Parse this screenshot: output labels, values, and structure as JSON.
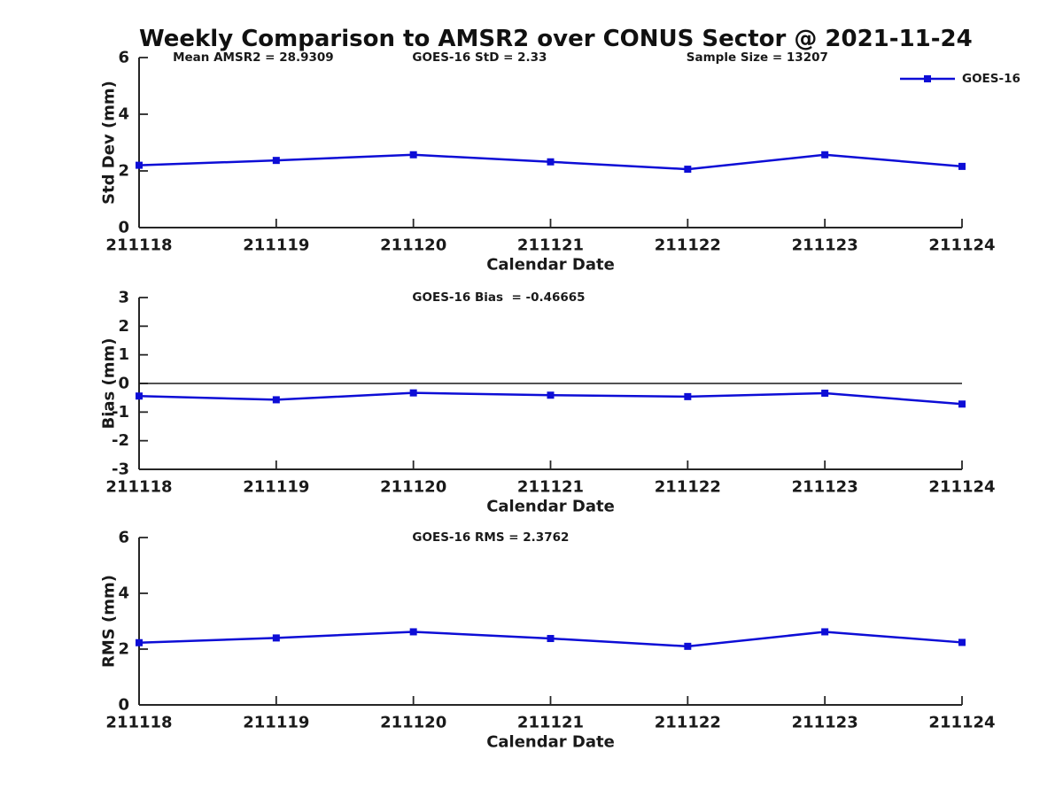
{
  "title": "Weekly Comparison to AMSR2 over CONUS Sector @ 2021-11-24",
  "colors": {
    "series": "#0d0dd6",
    "text": "#1a1a1a",
    "axis": "#262626",
    "zero_line": "#1a1a1a"
  },
  "legend": {
    "label": "GOES-16"
  },
  "chart_data": [
    {
      "type": "line",
      "panel": "std-dev",
      "x": [
        "211118",
        "211119",
        "211120",
        "211121",
        "211122",
        "211123",
        "211124"
      ],
      "series": [
        {
          "name": "GOES-16",
          "values": [
            2.2,
            2.37,
            2.57,
            2.32,
            2.06,
            2.57,
            2.16
          ],
          "marker": "square"
        }
      ],
      "xlabel": "Calendar Date",
      "ylabel": "Std Dev (mm)",
      "ylim": [
        0,
        6
      ],
      "yticks": [
        0,
        2,
        4,
        6
      ],
      "grid": false,
      "zero_line": false,
      "legend": {
        "label": "GOES-16",
        "position": "top-right"
      },
      "annotations": [
        {
          "text": "Mean AMSR2 = 28.9309",
          "xfrac": 0.041
        },
        {
          "text": "GOES-16 StD = 2.33",
          "xfrac": 0.332
        },
        {
          "text": "Sample Size = 13207",
          "xfrac": 0.665
        }
      ]
    },
    {
      "type": "line",
      "panel": "bias",
      "x": [
        "211118",
        "211119",
        "211120",
        "211121",
        "211122",
        "211123",
        "211124"
      ],
      "series": [
        {
          "name": "GOES-16",
          "values": [
            -0.44,
            -0.57,
            -0.33,
            -0.41,
            -0.46,
            -0.34,
            -0.72
          ],
          "marker": "square"
        }
      ],
      "xlabel": "Calendar Date",
      "ylabel": "Bias (mm)",
      "ylim": [
        -3,
        3
      ],
      "yticks": [
        3,
        2,
        1,
        0,
        -1,
        -2,
        -3
      ],
      "grid": false,
      "zero_line": true,
      "annotations": [
        {
          "text": "GOES-16 Bias  = -0.46665",
          "xfrac": 0.332
        }
      ]
    },
    {
      "type": "line",
      "panel": "rms",
      "x": [
        "211118",
        "211119",
        "211120",
        "211121",
        "211122",
        "211123",
        "211124"
      ],
      "series": [
        {
          "name": "GOES-16",
          "values": [
            2.23,
            2.4,
            2.62,
            2.38,
            2.1,
            2.62,
            2.24
          ],
          "marker": "square"
        }
      ],
      "xlabel": "Calendar Date",
      "ylabel": "RMS (mm)",
      "ylim": [
        0,
        6
      ],
      "yticks": [
        0,
        2,
        4,
        6
      ],
      "grid": false,
      "zero_line": false,
      "annotations": [
        {
          "text": "GOES-16 RMS = 2.3762",
          "xfrac": 0.332
        }
      ]
    }
  ]
}
